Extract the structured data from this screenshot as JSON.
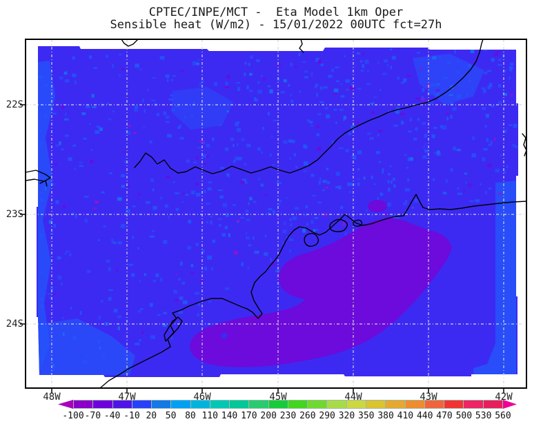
{
  "title": {
    "line1": "CPTEC/INPE/MCT -  Eta Model 1km Oper",
    "line2": "Sensible heat (W/m2) - 15/01/2022 00UTC fct=27h"
  },
  "axes": {
    "lat_labels": [
      "22S",
      "23S",
      "24S"
    ],
    "lon_labels": [
      "48W",
      "47W",
      "46W",
      "45W",
      "44W",
      "43W",
      "42W"
    ]
  },
  "colorbar": {
    "tick_labels": [
      "-100",
      "-70",
      "-40",
      "-10",
      "20",
      "50",
      "80",
      "110",
      "140",
      "170",
      "200",
      "230",
      "260",
      "290",
      "320",
      "350",
      "380",
      "410",
      "440",
      "470",
      "500",
      "530",
      "560"
    ],
    "segment_colors": [
      "#8a00c8",
      "#6e00dc",
      "#5014e8",
      "#2840fa",
      "#1478e6",
      "#00a0f5",
      "#00b4e0",
      "#00c8b4",
      "#00c896",
      "#28cc6e",
      "#17cc39",
      "#42d61c",
      "#70d92e",
      "#a8dc46",
      "#ccd83e",
      "#dcc330",
      "#e6a82e",
      "#ee8c2e",
      "#f0643c",
      "#f23333",
      "#ee2464",
      "#e81e5c"
    ],
    "arrow_left_color": "#a800bc",
    "arrow_right_color": "#f00096"
  },
  "colors": {
    "background": "#ffffff",
    "frame": "#000000",
    "gridline": "#d6d6da",
    "coastline": "#000000",
    "map_base": "#3c2af2",
    "map_light_patch": "#2453fa",
    "map_light_patch2": "#1b6cf0",
    "map_anomaly_purple": "#6c0bdb",
    "map_speckle_magenta": "#a011c6"
  },
  "chart_data": {
    "type": "heatmap",
    "title": "CPTEC/INPE/MCT -  Eta Model 1km Oper",
    "subtitle": "Sensible heat (W/m2) - 15/01/2022 00UTC fct=27h",
    "variable": "Sensible heat",
    "units": "W/m2",
    "valid_time": "15/01/2022 00UTC",
    "forecast_hour": "fct=27h",
    "model": "Eta Model 1km Oper",
    "source": "CPTEC/INPE/MCT",
    "x_ticks": [
      "48W",
      "47W",
      "46W",
      "45W",
      "44W",
      "43W",
      "42W"
    ],
    "y_ticks": [
      "22S",
      "23S",
      "24S"
    ],
    "grid": true,
    "legend_position": "bottom colorbar with out-of-range arrows",
    "colorbar_levels": [
      -100,
      -70,
      -40,
      -10,
      20,
      50,
      80,
      110,
      140,
      170,
      200,
      230,
      260,
      290,
      320,
      350,
      380,
      410,
      440,
      470,
      500,
      530,
      560
    ],
    "colorbar_step": 30,
    "field_summary": {
      "dominant_range": "-10 to 20 W/m2 (blue) over most of the land domain",
      "secondary": "patches of 20 to 50 W/m2 (lighter blue) mottled over land and along domain edges",
      "anomaly": "smooth -40 to -10 W/m2 (violet) region offshore south/southeast of the coastline between ~46W and ~43W, 23.3S-24.4S, with a small similar patch inland near 44.7W 22.8S",
      "sparse_speckles": "isolated -70 and lower (purple/magenta) speckles over land"
    }
  }
}
